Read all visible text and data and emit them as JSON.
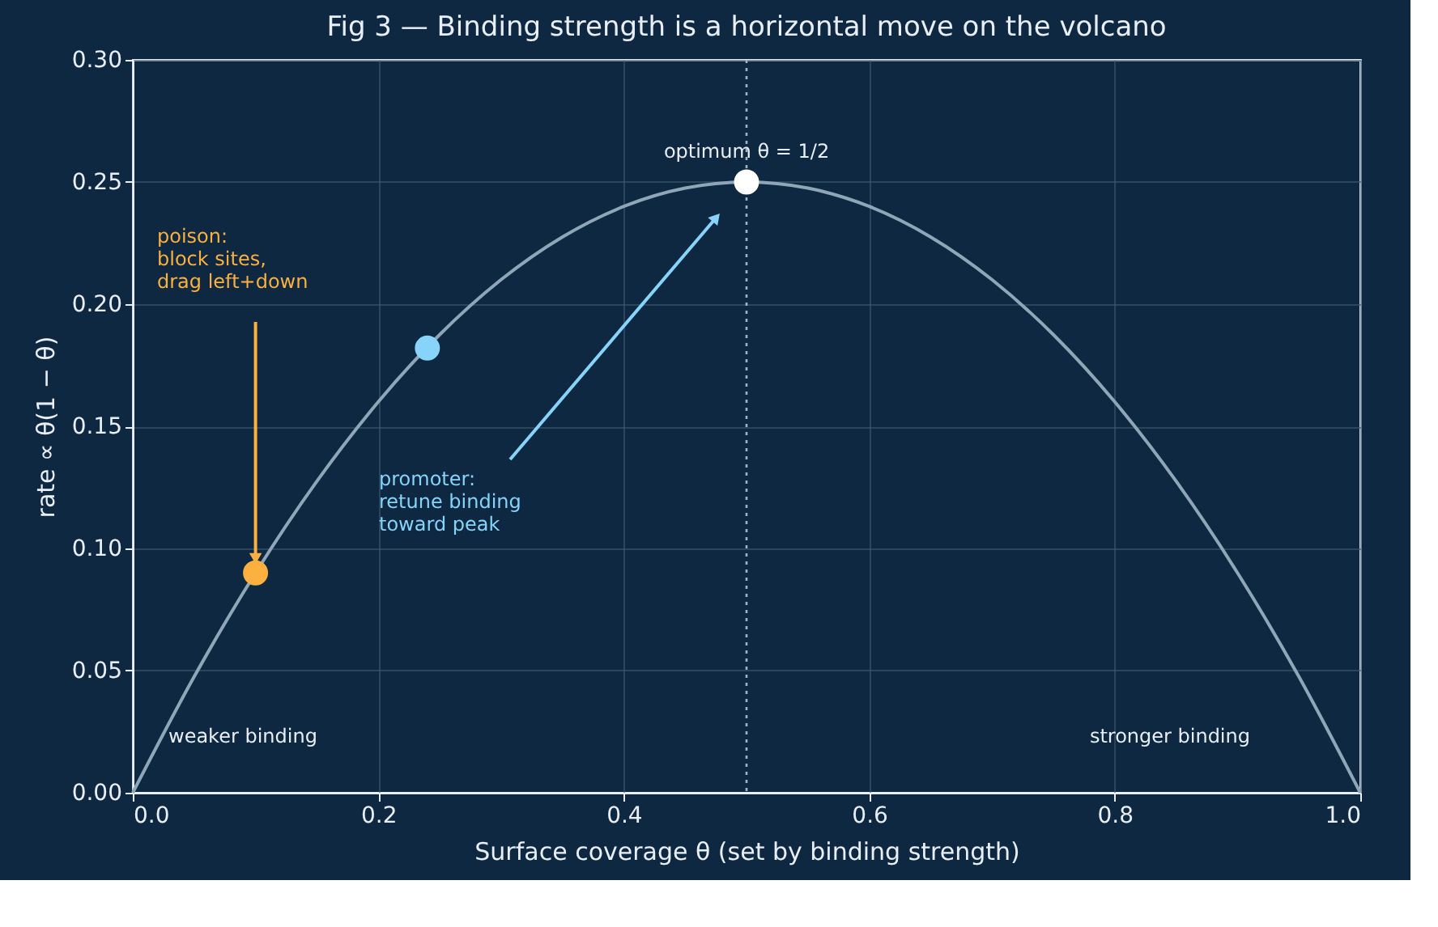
{
  "chart_data": {
    "type": "line",
    "title": "Fig 3 — Binding strength is a horizontal move on the volcano",
    "xlabel": "Surface coverage  θ   (set by binding strength)",
    "ylabel": "rate  ∝ θ(1 − θ)",
    "series": [
      {
        "color": "#8fa6b8",
        "x": [
          0,
          0.05,
          0.1,
          0.15,
          0.2,
          0.25,
          0.3,
          0.35,
          0.4,
          0.45,
          0.5,
          0.55,
          0.6,
          0.65,
          0.7,
          0.75,
          0.8,
          0.85,
          0.9,
          0.95,
          1.0
        ],
        "values": [
          0,
          0.0475,
          0.09,
          0.1275,
          0.16,
          0.1875,
          0.21,
          0.2275,
          0.24,
          0.2475,
          0.25,
          0.2475,
          0.24,
          0.2275,
          0.21,
          0.1875,
          0.16,
          0.1275,
          0.09,
          0.0475,
          0
        ]
      },
      {
        "type": "scatter",
        "color": "#fbb040",
        "x": [
          0.1
        ],
        "values": [
          0.09
        ]
      },
      {
        "type": "scatter",
        "color": "#87d3fa",
        "x": [
          0.24
        ],
        "values": [
          0.182
        ]
      },
      {
        "type": "scatter",
        "color": "#ffffff",
        "x": [
          0.5
        ],
        "values": [
          0.25
        ]
      }
    ],
    "xlim": [
      0,
      1
    ],
    "ylim": [
      0,
      0.3
    ],
    "xticks": [
      {
        "value": 0,
        "label": "0.0"
      },
      0.2,
      0.4,
      0.6,
      0.8,
      {
        "value": 1,
        "label": "1.0"
      }
    ],
    "yticks": [
      {
        "value": 0,
        "label": "0.00"
      },
      {
        "value": 0.05,
        "label": "0.05"
      },
      {
        "value": 0.1,
        "label": "0.10"
      },
      {
        "value": 0.15,
        "label": "0.15"
      },
      {
        "value": 0.2,
        "label": "0.20"
      },
      {
        "value": 0.25,
        "label": "0.25"
      },
      {
        "value": 0.3,
        "label": "0.30"
      }
    ],
    "ref_lines": [
      {
        "axis": "x",
        "value": 0.5,
        "color": "#9fb6c8",
        "line_style": "dotted"
      }
    ],
    "annotations": [
      {
        "text": "optimum θ = 1/2",
        "x": 0.5,
        "y": 0.25
      },
      "poison:\nblock sites,\ndrag left+down",
      "promoter:\nretune binding\ntoward peak",
      "weaker binding",
      "stronger binding"
    ],
    "grid": true
  }
}
